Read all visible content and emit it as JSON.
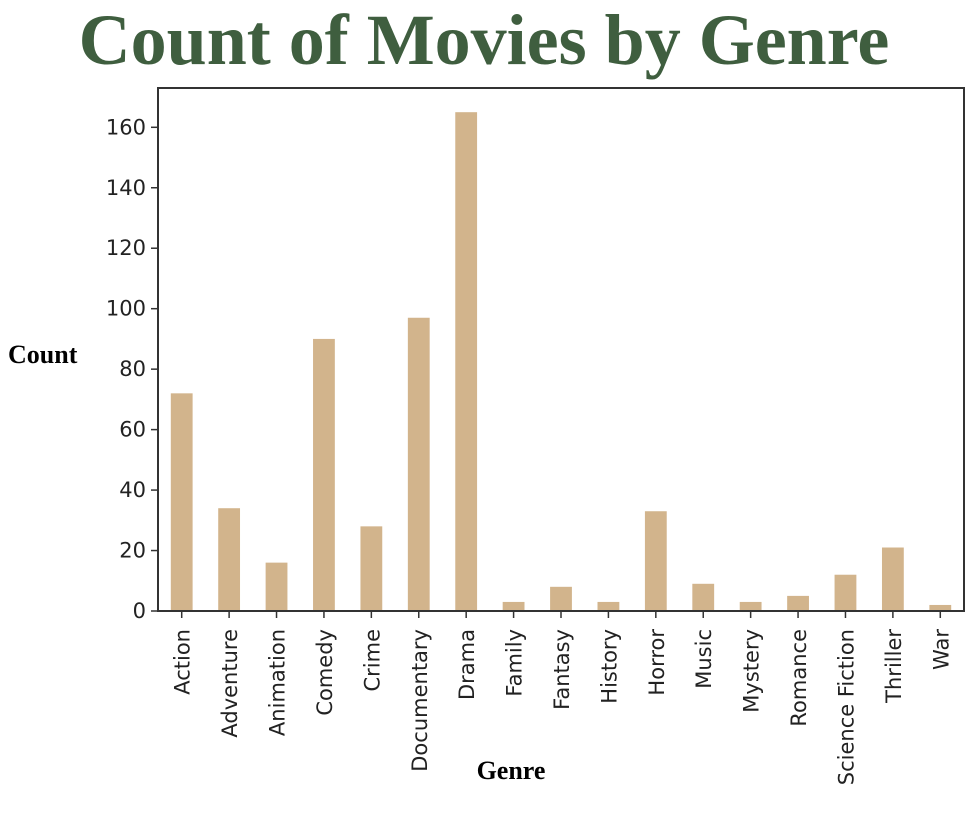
{
  "colors": {
    "title": "#3f5e3f",
    "bar": "#d2b48c",
    "axis": "#333333"
  },
  "chart_data": {
    "type": "bar",
    "title": "Count of Movies by Genre",
    "xlabel": "Genre",
    "ylabel": "Count",
    "categories": [
      "Action",
      "Adventure",
      "Animation",
      "Comedy",
      "Crime",
      "Documentary",
      "Drama",
      "Family",
      "Fantasy",
      "History",
      "Horror",
      "Music",
      "Mystery",
      "Romance",
      "Science Fiction",
      "Thriller",
      "War"
    ],
    "values": [
      72,
      34,
      16,
      90,
      28,
      97,
      165,
      3,
      8,
      3,
      33,
      9,
      3,
      5,
      12,
      21,
      2
    ],
    "yticks": [
      0,
      20,
      40,
      60,
      80,
      100,
      120,
      140,
      160
    ],
    "ylim": [
      0,
      173
    ],
    "grid": false,
    "legend": "none"
  }
}
